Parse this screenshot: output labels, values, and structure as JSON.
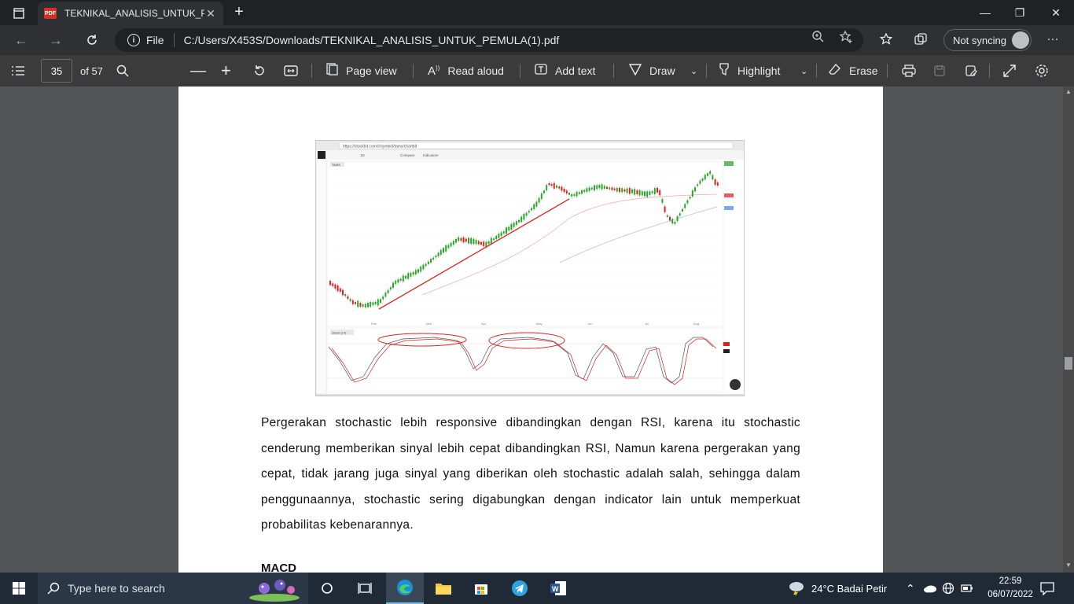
{
  "browser": {
    "tab_title": "TEKNIKAL_ANALISIS_UNTUK_PEM",
    "pdf_badge": "PDF",
    "tab_close": "✕",
    "new_tab": "+",
    "window_controls": {
      "minimize": "—",
      "maximize": "❐",
      "close": "✕"
    },
    "omnibox": {
      "scheme_label": "File",
      "url": "C:/Users/X453S/Downloads/TEKNIKAL_ANALISIS_UNTUK_PEMULA(1).pdf"
    },
    "sync_label": "Not syncing",
    "more": "···"
  },
  "pdf_toolbar": {
    "page_current": "35",
    "page_total": "of 57",
    "page_view": "Page view",
    "read_aloud": "Read aloud",
    "add_text": "Add text",
    "draw": "Draw",
    "highlight": "Highlight",
    "erase": "Erase"
  },
  "document": {
    "figure": {
      "url": "https://stockbit.com/#/symbol/tams/chartbit",
      "symbol": "TAMS",
      "toolbar": [
        "1D",
        "Compare",
        "Indicators"
      ],
      "months": [
        "Feb",
        "Mar",
        "Apr",
        "May",
        "Jun",
        "Jul",
        "Aug"
      ],
      "indicator_label": "Stoch (14)",
      "accent_green": "#2aa52a",
      "accent_red": "#e02020"
    },
    "paragraph": "Pergerakan stochastic lebih responsive dibandingkan dengan RSI, karena itu stochastic cenderung memberikan sinyal lebih cepat dibandingkan RSI, Namun karena pergerakan yang cepat, tidak jarang juga sinyal yang diberikan oleh stochastic adalah salah, sehingga dalam penggunaannya, stochastic sering digabungkan dengan indicator lain untuk memperkuat probabilitas kebenarannya.",
    "next_heading": "MACD"
  },
  "taskbar": {
    "search_placeholder": "Type here to search",
    "weather": "24°C  Badai Petir",
    "time": "22:59",
    "date": "06/07/2022"
  }
}
